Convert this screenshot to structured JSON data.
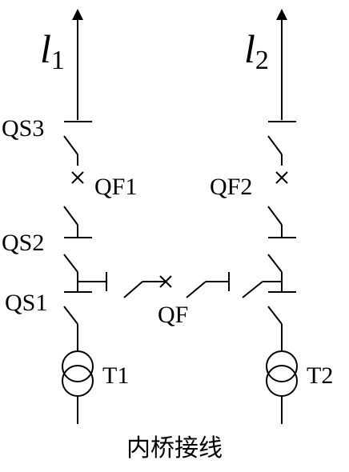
{
  "lines": [
    {
      "letter": "l",
      "sub": "1"
    },
    {
      "letter": "l",
      "sub": "2"
    }
  ],
  "labels": {
    "qs3": "QS3",
    "qf1": "QF1",
    "qf2": "QF2",
    "qs2": "QS2",
    "qs1": "QS1",
    "qf": "QF",
    "t1": "T1",
    "t2": "T2"
  },
  "caption": "内桥接线"
}
